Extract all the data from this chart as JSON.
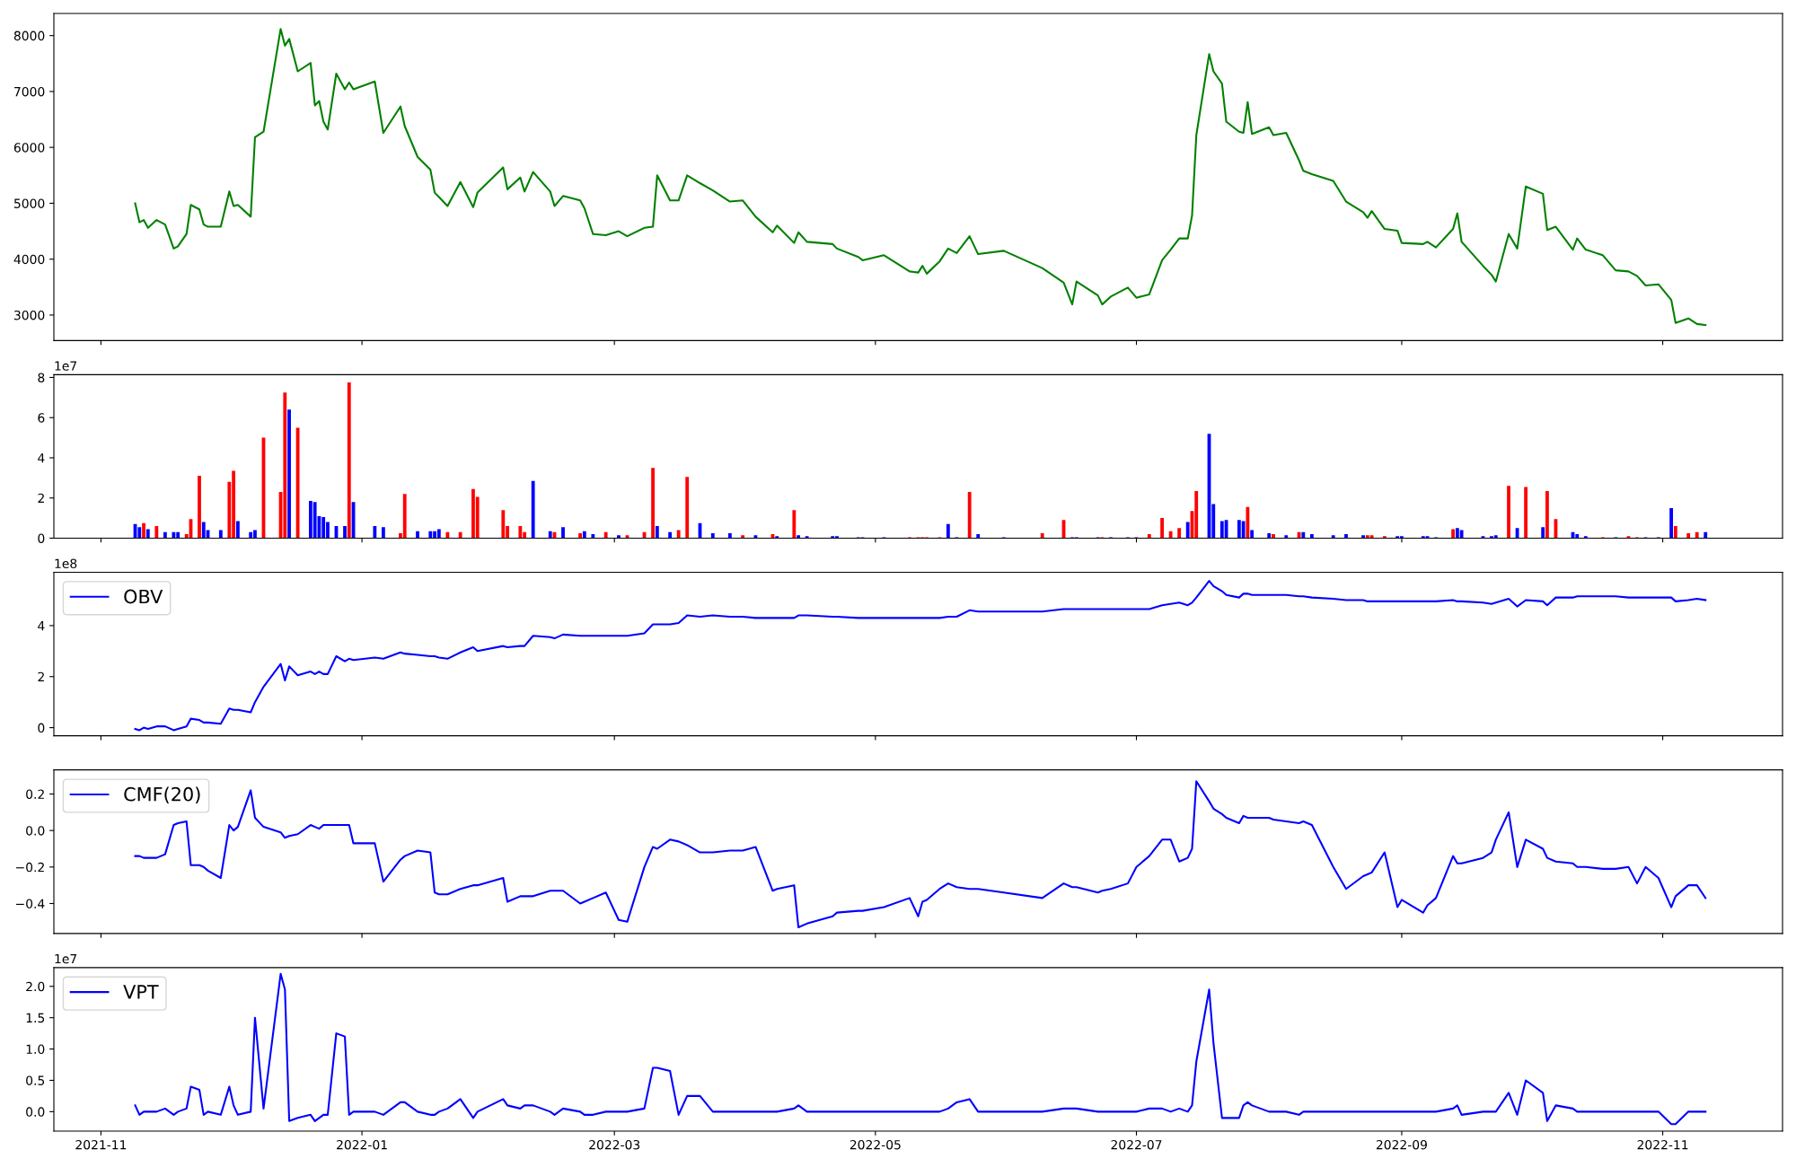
{
  "chart_data": [
    {
      "type": "line",
      "color": "#008000",
      "tick_labels": "y",
      "xlim": [
        "2021-10-21",
        "2022-11-29"
      ],
      "xticks": [
        "2021-11",
        "2022-01",
        "2022-03",
        "2022-05",
        "2022-07",
        "2022-09",
        "2022-11"
      ],
      "ylim": [
        2544,
        8396
      ],
      "yticks": [
        3000,
        4000,
        5000,
        6000,
        7000,
        8000
      ],
      "x": [
        "2021-11-09",
        "2021-11-10",
        "2021-11-11",
        "2021-11-12",
        "2021-11-14",
        "2021-11-16",
        "2021-11-18",
        "2021-11-19",
        "2021-11-21",
        "2021-11-22",
        "2021-11-24",
        "2021-11-25",
        "2021-11-26",
        "2021-11-29",
        "2021-12-01",
        "2021-12-02",
        "2021-12-03",
        "2021-12-06",
        "2021-12-07",
        "2021-12-09",
        "2021-12-13",
        "2021-12-14",
        "2021-12-15",
        "2021-12-17",
        "2021-12-20",
        "2021-12-21",
        "2021-12-22",
        "2021-12-23",
        "2021-12-24",
        "2021-12-26",
        "2021-12-28",
        "2021-12-29",
        "2021-12-30",
        "2022-01-04",
        "2022-01-06",
        "2022-01-10",
        "2022-01-11",
        "2022-01-14",
        "2022-01-17",
        "2022-01-18",
        "2022-01-19",
        "2022-01-21",
        "2022-01-24",
        "2022-01-27",
        "2022-01-28",
        "2022-02-03",
        "2022-02-04",
        "2022-02-07",
        "2022-02-08",
        "2022-02-10",
        "2022-02-14",
        "2022-02-15",
        "2022-02-17",
        "2022-02-21",
        "2022-02-22",
        "2022-02-24",
        "2022-02-27",
        "2022-03-02",
        "2022-03-04",
        "2022-03-08",
        "2022-03-10",
        "2022-03-11",
        "2022-03-14",
        "2022-03-16",
        "2022-03-18",
        "2022-03-21",
        "2022-03-24",
        "2022-03-28",
        "2022-03-31",
        "2022-04-03",
        "2022-04-07",
        "2022-04-08",
        "2022-04-12",
        "2022-04-13",
        "2022-04-15",
        "2022-04-21",
        "2022-04-22",
        "2022-04-27",
        "2022-04-28",
        "2022-05-03",
        "2022-05-09",
        "2022-05-11",
        "2022-05-12",
        "2022-05-13",
        "2022-05-16",
        "2022-05-18",
        "2022-05-20",
        "2022-05-23",
        "2022-05-25",
        "2022-05-31",
        "2022-06-09",
        "2022-06-14",
        "2022-06-16",
        "2022-06-17",
        "2022-06-22",
        "2022-06-23",
        "2022-06-25",
        "2022-06-29",
        "2022-07-01",
        "2022-07-04",
        "2022-07-07",
        "2022-07-09",
        "2022-07-11",
        "2022-07-13",
        "2022-07-14",
        "2022-07-15",
        "2022-07-18",
        "2022-07-19",
        "2022-07-21",
        "2022-07-22",
        "2022-07-25",
        "2022-07-26",
        "2022-07-27",
        "2022-07-28",
        "2022-08-01",
        "2022-08-02",
        "2022-08-05",
        "2022-08-08",
        "2022-08-09",
        "2022-08-11",
        "2022-08-16",
        "2022-08-19",
        "2022-08-23",
        "2022-08-24",
        "2022-08-25",
        "2022-08-28",
        "2022-08-31",
        "2022-09-01",
        "2022-09-06",
        "2022-09-07",
        "2022-09-09",
        "2022-09-13",
        "2022-09-14",
        "2022-09-15",
        "2022-09-20",
        "2022-09-22",
        "2022-09-23",
        "2022-09-26",
        "2022-09-28",
        "2022-09-30",
        "2022-10-04",
        "2022-10-05",
        "2022-10-07",
        "2022-10-11",
        "2022-10-12",
        "2022-10-14",
        "2022-10-18",
        "2022-10-21",
        "2022-10-24",
        "2022-10-26",
        "2022-10-28",
        "2022-10-31",
        "2022-11-03",
        "2022-11-04",
        "2022-11-07",
        "2022-11-09",
        "2022-11-11"
      ],
      "values": [
        5000,
        4660,
        4700,
        4560,
        4700,
        4620,
        4190,
        4230,
        4450,
        4970,
        4890,
        4620,
        4580,
        4580,
        5210,
        4950,
        4970,
        4760,
        6180,
        6280,
        8120,
        7820,
        7940,
        7360,
        7510,
        6750,
        6830,
        6460,
        6320,
        7320,
        7040,
        7160,
        7040,
        7180,
        6260,
        6730,
        6380,
        5830,
        5600,
        5190,
        5110,
        4950,
        5380,
        4930,
        5190,
        5640,
        5250,
        5460,
        5210,
        5560,
        5210,
        4950,
        5130,
        5050,
        4910,
        4450,
        4430,
        4500,
        4410,
        4560,
        4580,
        5500,
        5050,
        5050,
        5500,
        5360,
        5230,
        5030,
        5050,
        4760,
        4480,
        4600,
        4290,
        4480,
        4310,
        4270,
        4190,
        4040,
        3980,
        4070,
        3780,
        3760,
        3880,
        3740,
        3960,
        4190,
        4110,
        4410,
        4090,
        4150,
        3840,
        3580,
        3190,
        3600,
        3350,
        3190,
        3330,
        3490,
        3310,
        3370,
        3980,
        4170,
        4370,
        4370,
        4780,
        6220,
        7670,
        7360,
        7140,
        6460,
        6280,
        6260,
        6810,
        6240,
        6360,
        6220,
        6260,
        5770,
        5580,
        5520,
        5400,
        5030,
        4840,
        4740,
        4860,
        4540,
        4510,
        4290,
        4270,
        4310,
        4210,
        4540,
        4820,
        4310,
        3880,
        3720,
        3600,
        4450,
        4190,
        5300,
        5170,
        4520,
        4580,
        4170,
        4370,
        4170,
        4070,
        3800,
        3780,
        3700,
        3530,
        3550,
        3270,
        2860,
        2940,
        2840,
        2820
      ]
    },
    {
      "type": "bar",
      "tick_labels": "y",
      "annotations": [
        "1e7"
      ],
      "xlim": [
        "2021-10-21",
        "2022-11-29"
      ],
      "xticks": [
        "2021-11",
        "2022-01",
        "2022-03",
        "2022-05",
        "2022-07",
        "2022-09",
        "2022-11"
      ],
      "ylim": [
        0,
        8.14
      ],
      "yticks": [
        0,
        2,
        4,
        6,
        8
      ],
      "x": [
        "2021-11-09",
        "2021-11-10",
        "2021-11-11",
        "2021-11-12",
        "2021-11-14",
        "2021-11-16",
        "2021-11-18",
        "2021-11-19",
        "2021-11-21",
        "2021-11-22",
        "2021-11-24",
        "2021-11-25",
        "2021-11-26",
        "2021-11-29",
        "2021-12-01",
        "2021-12-02",
        "2021-12-03",
        "2021-12-06",
        "2021-12-07",
        "2021-12-09",
        "2021-12-13",
        "2021-12-14",
        "2021-12-15",
        "2021-12-17",
        "2021-12-20",
        "2021-12-21",
        "2021-12-22",
        "2021-12-23",
        "2021-12-24",
        "2021-12-26",
        "2021-12-28",
        "2021-12-29",
        "2021-12-30",
        "2022-01-04",
        "2022-01-06",
        "2022-01-10",
        "2022-01-11",
        "2022-01-14",
        "2022-01-17",
        "2022-01-18",
        "2022-01-19",
        "2022-01-21",
        "2022-01-24",
        "2022-01-27",
        "2022-01-28",
        "2022-02-03",
        "2022-02-04",
        "2022-02-07",
        "2022-02-08",
        "2022-02-10",
        "2022-02-14",
        "2022-02-15",
        "2022-02-17",
        "2022-02-21",
        "2022-02-22",
        "2022-02-24",
        "2022-02-27",
        "2022-03-02",
        "2022-03-04",
        "2022-03-08",
        "2022-03-10",
        "2022-03-11",
        "2022-03-14",
        "2022-03-16",
        "2022-03-18",
        "2022-03-21",
        "2022-03-24",
        "2022-03-28",
        "2022-03-31",
        "2022-04-03",
        "2022-04-07",
        "2022-04-08",
        "2022-04-12",
        "2022-04-13",
        "2022-04-15",
        "2022-04-21",
        "2022-04-22",
        "2022-04-27",
        "2022-04-28",
        "2022-05-03",
        "2022-05-09",
        "2022-05-11",
        "2022-05-12",
        "2022-05-13",
        "2022-05-16",
        "2022-05-18",
        "2022-05-20",
        "2022-05-23",
        "2022-05-25",
        "2022-05-31",
        "2022-06-09",
        "2022-06-14",
        "2022-06-16",
        "2022-06-17",
        "2022-06-22",
        "2022-06-23",
        "2022-06-25",
        "2022-06-29",
        "2022-07-01",
        "2022-07-04",
        "2022-07-07",
        "2022-07-09",
        "2022-07-11",
        "2022-07-13",
        "2022-07-14",
        "2022-07-15",
        "2022-07-18",
        "2022-07-19",
        "2022-07-21",
        "2022-07-22",
        "2022-07-25",
        "2022-07-26",
        "2022-07-27",
        "2022-07-28",
        "2022-08-01",
        "2022-08-02",
        "2022-08-05",
        "2022-08-08",
        "2022-08-09",
        "2022-08-11",
        "2022-08-16",
        "2022-08-19",
        "2022-08-23",
        "2022-08-24",
        "2022-08-25",
        "2022-08-28",
        "2022-08-31",
        "2022-09-01",
        "2022-09-06",
        "2022-09-07",
        "2022-09-09",
        "2022-09-13",
        "2022-09-14",
        "2022-09-15",
        "2022-09-20",
        "2022-09-22",
        "2022-09-23",
        "2022-09-26",
        "2022-09-28",
        "2022-09-30",
        "2022-10-04",
        "2022-10-05",
        "2022-10-07",
        "2022-10-11",
        "2022-10-12",
        "2022-10-14",
        "2022-10-18",
        "2022-10-21",
        "2022-10-24",
        "2022-10-26",
        "2022-10-28",
        "2022-10-31",
        "2022-11-03",
        "2022-11-04",
        "2022-11-07",
        "2022-11-09",
        "2022-11-11"
      ],
      "values": [
        0.7,
        0.55,
        0.75,
        0.45,
        0.6,
        0.3,
        0.3,
        0.3,
        0.2,
        0.95,
        3.1,
        0.8,
        0.4,
        0.4,
        2.8,
        3.35,
        0.85,
        0.3,
        0.4,
        5.0,
        2.3,
        7.25,
        6.4,
        5.5,
        1.85,
        1.8,
        1.1,
        1.05,
        0.8,
        0.6,
        0.6,
        7.75,
        1.8,
        0.6,
        0.55,
        0.25,
        2.2,
        0.35,
        0.35,
        0.35,
        0.45,
        0.3,
        0.3,
        2.45,
        2.05,
        1.4,
        0.6,
        0.6,
        0.3,
        2.85,
        0.35,
        0.3,
        0.55,
        0.25,
        0.35,
        0.2,
        0.3,
        0.15,
        0.15,
        0.3,
        3.5,
        0.6,
        0.3,
        0.4,
        3.05,
        0.75,
        0.25,
        0.25,
        0.15,
        0.15,
        0.2,
        0.1,
        1.4,
        0.15,
        0.1,
        0.1,
        0.1,
        0.05,
        0.05,
        0.05,
        0.05,
        0.05,
        0.05,
        0.05,
        0.05,
        0.7,
        0.05,
        2.3,
        0.2,
        0.05,
        0.25,
        0.9,
        0.05,
        0.05,
        0.05,
        0.05,
        0.05,
        0.05,
        0.05,
        0.2,
        1.0,
        0.35,
        0.5,
        0.8,
        1.35,
        2.35,
        5.2,
        1.7,
        0.85,
        0.9,
        0.9,
        0.85,
        1.55,
        0.4,
        0.25,
        0.2,
        0.15,
        0.3,
        0.3,
        0.2,
        0.15,
        0.2,
        0.15,
        0.15,
        0.15,
        0.1,
        0.1,
        0.1,
        0.1,
        0.1,
        0.05,
        0.45,
        0.5,
        0.4,
        0.1,
        0.1,
        0.15,
        2.6,
        0.5,
        2.55,
        0.55,
        2.35,
        0.95,
        0.3,
        0.2,
        0.1,
        0.05,
        0.05,
        0.1,
        0.05,
        0.05,
        0.05,
        1.5,
        0.6,
        0.25,
        0.3,
        0.3
      ],
      "colors": [
        "#0000ff",
        "#0000ff",
        "#ff0000",
        "#0000ff",
        "#ff0000",
        "#0000ff",
        "#0000ff",
        "#0000ff",
        "#ff0000",
        "#ff0000",
        "#ff0000",
        "#0000ff",
        "#0000ff",
        "#0000ff",
        "#ff0000",
        "#ff0000",
        "#0000ff",
        "#0000ff",
        "#0000ff",
        "#ff0000",
        "#ff0000",
        "#ff0000",
        "#0000ff",
        "#ff0000",
        "#0000ff",
        "#0000ff",
        "#0000ff",
        "#0000ff",
        "#0000ff",
        "#0000ff",
        "#0000ff",
        "#ff0000",
        "#0000ff",
        "#0000ff",
        "#0000ff",
        "#ff0000",
        "#ff0000",
        "#0000ff",
        "#0000ff",
        "#0000ff",
        "#0000ff",
        "#ff0000",
        "#ff0000",
        "#ff0000",
        "#ff0000",
        "#ff0000",
        "#ff0000",
        "#ff0000",
        "#ff0000",
        "#0000ff",
        "#0000ff",
        "#ff0000",
        "#0000ff",
        "#ff0000",
        "#0000ff",
        "#0000ff",
        "#ff0000",
        "#0000ff",
        "#ff0000",
        "#ff0000",
        "#ff0000",
        "#0000ff",
        "#0000ff",
        "#ff0000",
        "#ff0000",
        "#0000ff",
        "#0000ff",
        "#0000ff",
        "#ff0000",
        "#0000ff",
        "#ff0000",
        "#0000ff",
        "#ff0000",
        "#0000ff",
        "#0000ff",
        "#0000ff",
        "#0000ff",
        "#0000ff",
        "#0000ff",
        "#0000ff",
        "#ff0000",
        "#ff0000",
        "#ff0000",
        "#ff0000",
        "#ff0000",
        "#0000ff",
        "#0000ff",
        "#ff0000",
        "#0000ff",
        "#0000ff",
        "#ff0000",
        "#ff0000",
        "#0000ff",
        "#0000ff",
        "#0000ff",
        "#ff0000",
        "#0000ff",
        "#0000ff",
        "#0000ff",
        "#ff0000",
        "#ff0000",
        "#ff0000",
        "#ff0000",
        "#0000ff",
        "#ff0000",
        "#ff0000",
        "#0000ff",
        "#0000ff",
        "#0000ff",
        "#0000ff",
        "#0000ff",
        "#0000ff",
        "#ff0000",
        "#0000ff",
        "#0000ff",
        "#ff0000",
        "#0000ff",
        "#ff0000",
        "#0000ff",
        "#0000ff",
        "#0000ff",
        "#0000ff",
        "#0000ff",
        "#ff0000",
        "#ff0000",
        "#ff0000",
        "#0000ff",
        "#0000ff",
        "#0000ff",
        "#0000ff",
        "#0000ff",
        "#ff0000",
        "#0000ff",
        "#0000ff",
        "#0000ff",
        "#0000ff",
        "#0000ff",
        "#ff0000",
        "#0000ff",
        "#ff0000",
        "#0000ff",
        "#ff0000",
        "#ff0000",
        "#0000ff",
        "#0000ff",
        "#0000ff",
        "#ff0000",
        "#0000ff",
        "#ff0000",
        "#ff0000",
        "#0000ff",
        "#0000ff",
        "#0000ff",
        "#ff0000",
        "#ff0000",
        "#ff0000",
        "#0000ff"
      ]
    },
    {
      "type": "line",
      "tick_labels": "y",
      "legend": "top left",
      "annotations": [
        "1e8"
      ],
      "xlim": [
        "2021-10-21",
        "2022-11-29"
      ],
      "xticks": [
        "2021-11",
        "2022-01",
        "2022-03",
        "2022-05",
        "2022-07",
        "2022-09",
        "2022-11"
      ],
      "ylim": [
        -0.32,
        6.09
      ],
      "yticks": [
        0,
        2,
        4
      ],
      "x": [
        "2021-11-09",
        "2021-11-10",
        "2021-11-11",
        "2021-11-12",
        "2021-11-14",
        "2021-11-16",
        "2021-11-18",
        "2021-11-19",
        "2021-11-21",
        "2021-11-22",
        "2021-11-24",
        "2021-11-25",
        "2021-11-26",
        "2021-11-29",
        "2021-12-01",
        "2021-12-02",
        "2021-12-03",
        "2021-12-06",
        "2021-12-07",
        "2021-12-09",
        "2021-12-13",
        "2021-12-14",
        "2021-12-15",
        "2021-12-17",
        "2021-12-20",
        "2021-12-21",
        "2021-12-22",
        "2021-12-23",
        "2021-12-24",
        "2021-12-26",
        "2021-12-28",
        "2021-12-29",
        "2021-12-30",
        "2022-01-04",
        "2022-01-06",
        "2022-01-10",
        "2022-01-11",
        "2022-01-14",
        "2022-01-17",
        "2022-01-18",
        "2022-01-19",
        "2022-01-21",
        "2022-01-24",
        "2022-01-27",
        "2022-01-28",
        "2022-02-03",
        "2022-02-04",
        "2022-02-07",
        "2022-02-08",
        "2022-02-10",
        "2022-02-14",
        "2022-02-15",
        "2022-02-17",
        "2022-02-21",
        "2022-02-22",
        "2022-02-24",
        "2022-02-27",
        "2022-03-02",
        "2022-03-04",
        "2022-03-08",
        "2022-03-10",
        "2022-03-11",
        "2022-03-14",
        "2022-03-16",
        "2022-03-18",
        "2022-03-21",
        "2022-03-24",
        "2022-03-28",
        "2022-03-31",
        "2022-04-03",
        "2022-04-07",
        "2022-04-08",
        "2022-04-12",
        "2022-04-13",
        "2022-04-15",
        "2022-04-21",
        "2022-04-22",
        "2022-04-27",
        "2022-04-28",
        "2022-05-03",
        "2022-05-09",
        "2022-05-11",
        "2022-05-12",
        "2022-05-13",
        "2022-05-16",
        "2022-05-18",
        "2022-05-20",
        "2022-05-23",
        "2022-05-25",
        "2022-05-31",
        "2022-06-09",
        "2022-06-14",
        "2022-06-16",
        "2022-06-17",
        "2022-06-22",
        "2022-06-23",
        "2022-06-25",
        "2022-06-29",
        "2022-07-01",
        "2022-07-04",
        "2022-07-07",
        "2022-07-09",
        "2022-07-11",
        "2022-07-13",
        "2022-07-14",
        "2022-07-15",
        "2022-07-18",
        "2022-07-19",
        "2022-07-21",
        "2022-07-22",
        "2022-07-25",
        "2022-07-26",
        "2022-07-27",
        "2022-07-28",
        "2022-08-01",
        "2022-08-02",
        "2022-08-05",
        "2022-08-08",
        "2022-08-09",
        "2022-08-11",
        "2022-08-16",
        "2022-08-19",
        "2022-08-23",
        "2022-08-24",
        "2022-08-25",
        "2022-08-28",
        "2022-08-31",
        "2022-09-01",
        "2022-09-06",
        "2022-09-07",
        "2022-09-09",
        "2022-09-13",
        "2022-09-14",
        "2022-09-15",
        "2022-09-20",
        "2022-09-22",
        "2022-09-23",
        "2022-09-26",
        "2022-09-28",
        "2022-09-30",
        "2022-10-04",
        "2022-10-05",
        "2022-10-07",
        "2022-10-11",
        "2022-10-12",
        "2022-10-14",
        "2022-10-18",
        "2022-10-21",
        "2022-10-24",
        "2022-10-26",
        "2022-10-28",
        "2022-10-31",
        "2022-11-03",
        "2022-11-04",
        "2022-11-07",
        "2022-11-09",
        "2022-11-11"
      ],
      "series": [
        {
          "name": "OBV",
          "color": "#0000ff",
          "values": [
            -0.05,
            -0.1,
            0.0,
            -0.05,
            0.05,
            0.05,
            -0.1,
            -0.05,
            0.05,
            0.35,
            0.3,
            0.2,
            0.2,
            0.15,
            0.75,
            0.7,
            0.7,
            0.6,
            1.0,
            1.6,
            2.5,
            1.85,
            2.4,
            2.05,
            2.2,
            2.1,
            2.2,
            2.1,
            2.1,
            2.8,
            2.6,
            2.7,
            2.65,
            2.75,
            2.7,
            2.95,
            2.9,
            2.85,
            2.8,
            2.8,
            2.75,
            2.7,
            2.95,
            3.15,
            3.0,
            3.2,
            3.15,
            3.2,
            3.2,
            3.6,
            3.55,
            3.5,
            3.65,
            3.6,
            3.6,
            3.6,
            3.6,
            3.6,
            3.6,
            3.7,
            4.05,
            4.05,
            4.05,
            4.1,
            4.4,
            4.35,
            4.4,
            4.35,
            4.35,
            4.3,
            4.3,
            4.3,
            4.3,
            4.4,
            4.4,
            4.35,
            4.35,
            4.3,
            4.3,
            4.3,
            4.3,
            4.3,
            4.3,
            4.3,
            4.3,
            4.35,
            4.35,
            4.6,
            4.55,
            4.55,
            4.55,
            4.65,
            4.65,
            4.65,
            4.65,
            4.65,
            4.65,
            4.65,
            4.65,
            4.65,
            4.8,
            4.85,
            4.9,
            4.8,
            4.9,
            5.1,
            5.75,
            5.55,
            5.35,
            5.2,
            5.1,
            5.25,
            5.25,
            5.2,
            5.2,
            5.2,
            5.2,
            5.15,
            5.15,
            5.1,
            5.05,
            5.0,
            5.0,
            4.95,
            4.95,
            4.95,
            4.95,
            4.95,
            4.95,
            4.95,
            4.95,
            5.0,
            4.95,
            4.95,
            4.9,
            4.85,
            4.9,
            5.05,
            4.75,
            5.0,
            4.95,
            4.8,
            5.1,
            5.1,
            5.15,
            5.15,
            5.15,
            5.15,
            5.1,
            5.1,
            5.1,
            5.1,
            5.1,
            4.95,
            5.0,
            5.05,
            5.0
          ]
        }
      ]
    },
    {
      "type": "line",
      "tick_labels": "y",
      "legend": "top left",
      "xlim": [
        "2021-10-21",
        "2022-11-29"
      ],
      "xticks": [
        "2021-11",
        "2022-01",
        "2022-03",
        "2022-05",
        "2022-07",
        "2022-09",
        "2022-11"
      ],
      "ylim": [
        -0.564,
        0.332
      ],
      "yticks": [
        {
          "value": -0.4,
          "label": "−0.4"
        },
        {
          "value": -0.2,
          "label": "−0.2"
        },
        {
          "value": 0,
          "label": "0.0"
        },
        {
          "value": 0.2,
          "label": "0.2"
        }
      ],
      "x": [
        "2021-11-09",
        "2021-11-10",
        "2021-11-11",
        "2021-11-12",
        "2021-11-14",
        "2021-11-16",
        "2021-11-18",
        "2021-11-19",
        "2021-11-21",
        "2021-11-22",
        "2021-11-24",
        "2021-11-25",
        "2021-11-26",
        "2021-11-29",
        "2021-12-01",
        "2021-12-02",
        "2021-12-03",
        "2021-12-06",
        "2021-12-07",
        "2021-12-09",
        "2021-12-13",
        "2021-12-14",
        "2021-12-15",
        "2021-12-17",
        "2021-12-20",
        "2021-12-21",
        "2021-12-22",
        "2021-12-23",
        "2021-12-24",
        "2021-12-26",
        "2021-12-28",
        "2021-12-29",
        "2021-12-30",
        "2022-01-04",
        "2022-01-06",
        "2022-01-10",
        "2022-01-11",
        "2022-01-14",
        "2022-01-17",
        "2022-01-18",
        "2022-01-19",
        "2022-01-21",
        "2022-01-24",
        "2022-01-27",
        "2022-01-28",
        "2022-02-03",
        "2022-02-04",
        "2022-02-07",
        "2022-02-08",
        "2022-02-10",
        "2022-02-14",
        "2022-02-15",
        "2022-02-17",
        "2022-02-21",
        "2022-02-22",
        "2022-02-24",
        "2022-02-27",
        "2022-03-02",
        "2022-03-04",
        "2022-03-08",
        "2022-03-10",
        "2022-03-11",
        "2022-03-14",
        "2022-03-16",
        "2022-03-18",
        "2022-03-21",
        "2022-03-24",
        "2022-03-28",
        "2022-03-31",
        "2022-04-03",
        "2022-04-07",
        "2022-04-08",
        "2022-04-12",
        "2022-04-13",
        "2022-04-15",
        "2022-04-21",
        "2022-04-22",
        "2022-04-27",
        "2022-04-28",
        "2022-05-03",
        "2022-05-09",
        "2022-05-11",
        "2022-05-12",
        "2022-05-13",
        "2022-05-16",
        "2022-05-18",
        "2022-05-20",
        "2022-05-23",
        "2022-05-25",
        "2022-05-31",
        "2022-06-09",
        "2022-06-14",
        "2022-06-16",
        "2022-06-17",
        "2022-06-22",
        "2022-06-23",
        "2022-06-25",
        "2022-06-29",
        "2022-07-01",
        "2022-07-04",
        "2022-07-07",
        "2022-07-09",
        "2022-07-11",
        "2022-07-13",
        "2022-07-14",
        "2022-07-15",
        "2022-07-18",
        "2022-07-19",
        "2022-07-21",
        "2022-07-22",
        "2022-07-25",
        "2022-07-26",
        "2022-07-27",
        "2022-07-28",
        "2022-08-01",
        "2022-08-02",
        "2022-08-05",
        "2022-08-08",
        "2022-08-09",
        "2022-08-11",
        "2022-08-16",
        "2022-08-19",
        "2022-08-23",
        "2022-08-24",
        "2022-08-25",
        "2022-08-28",
        "2022-08-31",
        "2022-09-01",
        "2022-09-06",
        "2022-09-07",
        "2022-09-09",
        "2022-09-13",
        "2022-09-14",
        "2022-09-15",
        "2022-09-20",
        "2022-09-22",
        "2022-09-23",
        "2022-09-26",
        "2022-09-28",
        "2022-09-30",
        "2022-10-04",
        "2022-10-05",
        "2022-10-07",
        "2022-10-11",
        "2022-10-12",
        "2022-10-14",
        "2022-10-18",
        "2022-10-21",
        "2022-10-24",
        "2022-10-26",
        "2022-10-28",
        "2022-10-31",
        "2022-11-03",
        "2022-11-04",
        "2022-11-07",
        "2022-11-09",
        "2022-11-11"
      ],
      "series": [
        {
          "name": "CMF(20)",
          "color": "#0000ff",
          "values": [
            -0.14,
            -0.14,
            -0.15,
            -0.15,
            -0.15,
            -0.13,
            0.03,
            0.04,
            0.05,
            -0.19,
            -0.19,
            -0.2,
            -0.22,
            -0.26,
            0.03,
            0.0,
            0.02,
            0.22,
            0.07,
            0.02,
            -0.01,
            -0.04,
            -0.03,
            -0.02,
            0.03,
            0.02,
            0.01,
            0.03,
            0.03,
            0.03,
            0.03,
            0.03,
            -0.07,
            -0.07,
            -0.28,
            -0.16,
            -0.14,
            -0.11,
            -0.12,
            -0.34,
            -0.35,
            -0.35,
            -0.32,
            -0.3,
            -0.3,
            -0.26,
            -0.39,
            -0.36,
            -0.36,
            -0.36,
            -0.33,
            -0.33,
            -0.33,
            -0.4,
            -0.39,
            -0.37,
            -0.34,
            -0.49,
            -0.5,
            -0.2,
            -0.09,
            -0.1,
            -0.05,
            -0.06,
            -0.08,
            -0.12,
            -0.12,
            -0.11,
            -0.11,
            -0.09,
            -0.33,
            -0.32,
            -0.3,
            -0.53,
            -0.51,
            -0.47,
            -0.45,
            -0.44,
            -0.44,
            -0.42,
            -0.37,
            -0.47,
            -0.39,
            -0.38,
            -0.32,
            -0.29,
            -0.31,
            -0.32,
            -0.32,
            -0.34,
            -0.37,
            -0.29,
            -0.31,
            -0.31,
            -0.34,
            -0.33,
            -0.32,
            -0.29,
            -0.2,
            -0.14,
            -0.05,
            -0.05,
            -0.17,
            -0.15,
            -0.1,
            0.27,
            0.16,
            0.12,
            0.09,
            0.07,
            0.04,
            0.08,
            0.07,
            0.07,
            0.07,
            0.06,
            0.05,
            0.04,
            0.05,
            0.03,
            -0.2,
            -0.32,
            -0.25,
            -0.24,
            -0.23,
            -0.12,
            -0.42,
            -0.38,
            -0.45,
            -0.41,
            -0.37,
            -0.14,
            -0.18,
            -0.18,
            -0.15,
            -0.12,
            -0.05,
            0.1,
            -0.2,
            -0.05,
            -0.1,
            -0.15,
            -0.17,
            -0.18,
            -0.2,
            -0.2,
            -0.21,
            -0.21,
            -0.2,
            -0.29,
            -0.2,
            -0.26,
            -0.42,
            -0.36,
            -0.3,
            -0.3,
            -0.37
          ]
        }
      ]
    },
    {
      "type": "line",
      "legend": "top left",
      "annotations": [
        "1e7"
      ],
      "xlim": [
        "2021-10-21",
        "2022-11-29"
      ],
      "xticks": [
        "2021-11",
        "2022-01",
        "2022-03",
        "2022-05",
        "2022-07",
        "2022-09",
        "2022-11"
      ],
      "ylim": [
        -0.31,
        2.3
      ],
      "yticks": [
        {
          "value": 0,
          "label": "0.0"
        },
        {
          "value": 0.5,
          "label": "0.5"
        },
        {
          "value": 1,
          "label": "1.0"
        },
        {
          "value": 1.5,
          "label": "1.5"
        },
        {
          "value": 2,
          "label": "2.0"
        }
      ],
      "x": [
        "2021-11-09",
        "2021-11-10",
        "2021-11-11",
        "2021-11-12",
        "2021-11-14",
        "2021-11-16",
        "2021-11-18",
        "2021-11-19",
        "2021-11-21",
        "2021-11-22",
        "2021-11-24",
        "2021-11-25",
        "2021-11-26",
        "2021-11-29",
        "2021-12-01",
        "2021-12-02",
        "2021-12-03",
        "2021-12-06",
        "2021-12-07",
        "2021-12-09",
        "2021-12-13",
        "2021-12-14",
        "2021-12-15",
        "2021-12-17",
        "2021-12-20",
        "2021-12-21",
        "2021-12-22",
        "2021-12-23",
        "2021-12-24",
        "2021-12-26",
        "2021-12-28",
        "2021-12-29",
        "2021-12-30",
        "2022-01-04",
        "2022-01-06",
        "2022-01-10",
        "2022-01-11",
        "2022-01-14",
        "2022-01-17",
        "2022-01-18",
        "2022-01-19",
        "2022-01-21",
        "2022-01-24",
        "2022-01-27",
        "2022-01-28",
        "2022-02-03",
        "2022-02-04",
        "2022-02-07",
        "2022-02-08",
        "2022-02-10",
        "2022-02-14",
        "2022-02-15",
        "2022-02-17",
        "2022-02-21",
        "2022-02-22",
        "2022-02-24",
        "2022-02-27",
        "2022-03-02",
        "2022-03-04",
        "2022-03-08",
        "2022-03-10",
        "2022-03-11",
        "2022-03-14",
        "2022-03-16",
        "2022-03-18",
        "2022-03-21",
        "2022-03-24",
        "2022-03-28",
        "2022-03-31",
        "2022-04-03",
        "2022-04-07",
        "2022-04-08",
        "2022-04-12",
        "2022-04-13",
        "2022-04-15",
        "2022-04-21",
        "2022-04-22",
        "2022-04-27",
        "2022-04-28",
        "2022-05-03",
        "2022-05-09",
        "2022-05-11",
        "2022-05-12",
        "2022-05-13",
        "2022-05-16",
        "2022-05-18",
        "2022-05-20",
        "2022-05-23",
        "2022-05-25",
        "2022-05-31",
        "2022-06-09",
        "2022-06-14",
        "2022-06-16",
        "2022-06-17",
        "2022-06-22",
        "2022-06-23",
        "2022-06-25",
        "2022-06-29",
        "2022-07-01",
        "2022-07-04",
        "2022-07-07",
        "2022-07-09",
        "2022-07-11",
        "2022-07-13",
        "2022-07-14",
        "2022-07-15",
        "2022-07-18",
        "2022-07-19",
        "2022-07-21",
        "2022-07-22",
        "2022-07-25",
        "2022-07-26",
        "2022-07-27",
        "2022-07-28",
        "2022-08-01",
        "2022-08-02",
        "2022-08-05",
        "2022-08-08",
        "2022-08-09",
        "2022-08-11",
        "2022-08-16",
        "2022-08-19",
        "2022-08-23",
        "2022-08-24",
        "2022-08-25",
        "2022-08-28",
        "2022-08-31",
        "2022-09-01",
        "2022-09-06",
        "2022-09-07",
        "2022-09-09",
        "2022-09-13",
        "2022-09-14",
        "2022-09-15",
        "2022-09-20",
        "2022-09-22",
        "2022-09-23",
        "2022-09-26",
        "2022-09-28",
        "2022-09-30",
        "2022-10-04",
        "2022-10-05",
        "2022-10-07",
        "2022-10-11",
        "2022-10-12",
        "2022-10-14",
        "2022-10-18",
        "2022-10-21",
        "2022-10-24",
        "2022-10-26",
        "2022-10-28",
        "2022-10-31",
        "2022-11-03",
        "2022-11-04",
        "2022-11-07",
        "2022-11-09",
        "2022-11-11"
      ],
      "series": [
        {
          "name": "VPT",
          "color": "#0000ff",
          "values": [
            0.1,
            -0.05,
            0.0,
            0.0,
            0.0,
            0.05,
            -0.05,
            0.0,
            0.05,
            0.4,
            0.35,
            -0.05,
            0.0,
            -0.05,
            0.4,
            0.1,
            -0.05,
            0.0,
            1.5,
            0.05,
            2.2,
            1.95,
            -0.15,
            -0.1,
            -0.05,
            -0.15,
            -0.1,
            -0.05,
            -0.05,
            1.25,
            1.2,
            -0.05,
            0.0,
            0.0,
            -0.05,
            0.15,
            0.15,
            0.0,
            -0.05,
            -0.05,
            0.0,
            0.05,
            0.2,
            -0.1,
            0.0,
            0.2,
            0.1,
            0.05,
            0.1,
            0.1,
            0.0,
            -0.05,
            0.05,
            0.0,
            -0.05,
            -0.05,
            0.0,
            0.0,
            0.0,
            0.05,
            0.7,
            0.7,
            0.65,
            -0.05,
            0.25,
            0.25,
            0.0,
            0.0,
            0.0,
            0.0,
            0.0,
            0.0,
            0.05,
            0.1,
            0.0,
            0.0,
            0.0,
            0.0,
            0.0,
            0.0,
            0.0,
            0.0,
            0.0,
            0.0,
            0.0,
            0.05,
            0.15,
            0.2,
            0.0,
            0.0,
            0.0,
            0.05,
            0.05,
            0.05,
            0.0,
            0.0,
            0.0,
            0.0,
            0.0,
            0.05,
            0.05,
            0.0,
            0.05,
            0.0,
            0.1,
            0.8,
            1.95,
            1.1,
            -0.1,
            -0.1,
            -0.1,
            0.1,
            0.15,
            0.1,
            0.0,
            0.0,
            0.0,
            -0.05,
            0.0,
            0.0,
            0.0,
            0.0,
            0.0,
            0.0,
            0.0,
            0.0,
            0.0,
            0.0,
            0.0,
            0.0,
            0.0,
            0.05,
            0.1,
            -0.05,
            0.0,
            0.0,
            0.0,
            0.3,
            -0.05,
            0.5,
            0.3,
            -0.15,
            0.1,
            0.05,
            0.0,
            0.0,
            0.0,
            0.0,
            0.0,
            0.0,
            0.0,
            0.0,
            -0.2,
            -0.2,
            0.0,
            0.0,
            0.0
          ]
        }
      ]
    }
  ]
}
